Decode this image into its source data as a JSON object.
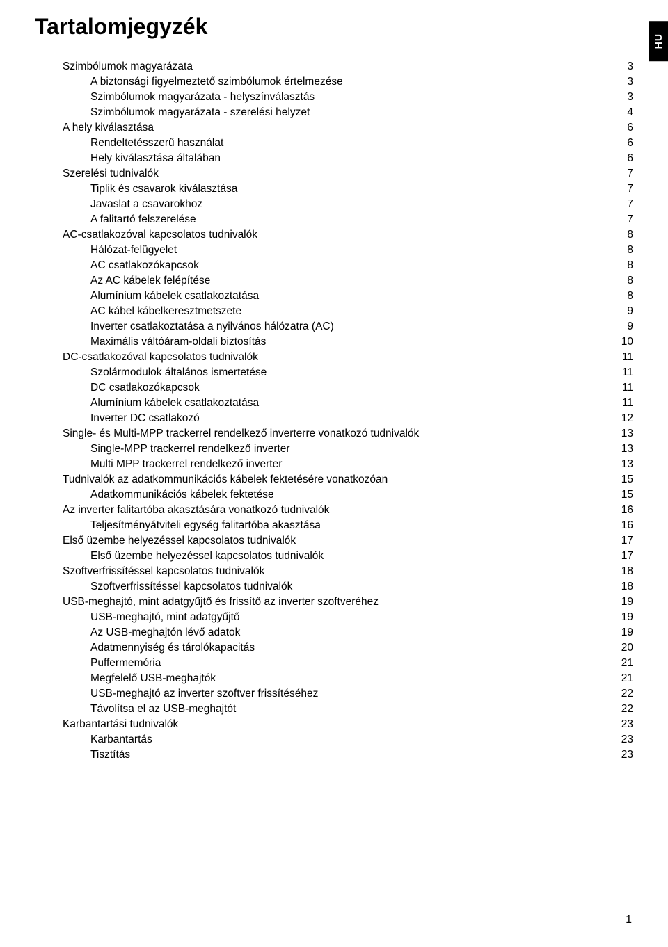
{
  "title": "Tartalomjegyzék",
  "langTab": "HU",
  "pageNumber": "1",
  "entries": [
    {
      "level": 0,
      "text": "Szimbólumok magyarázata",
      "page": "3"
    },
    {
      "level": 1,
      "text": "A biztonsági figyelmeztető szimbólumok értelmezése",
      "page": "3"
    },
    {
      "level": 1,
      "text": "Szimbólumok magyarázata - helyszínválasztás",
      "page": "3"
    },
    {
      "level": 1,
      "text": "Szimbólumok magyarázata - szerelési helyzet",
      "page": "4"
    },
    {
      "level": 0,
      "text": "A hely kiválasztása",
      "page": "6"
    },
    {
      "level": 1,
      "text": "Rendeltetésszerű használat",
      "page": "6"
    },
    {
      "level": 1,
      "text": "Hely kiválasztása általában",
      "page": "6"
    },
    {
      "level": 0,
      "text": "Szerelési tudnivalók",
      "page": "7"
    },
    {
      "level": 1,
      "text": "Tiplik és csavarok kiválasztása",
      "page": "7"
    },
    {
      "level": 1,
      "text": "Javaslat a csavarokhoz",
      "page": "7"
    },
    {
      "level": 1,
      "text": "A falitartó felszerelése",
      "page": "7"
    },
    {
      "level": 0,
      "text": "AC-csatlakozóval kapcsolatos tudnivalók",
      "page": "8"
    },
    {
      "level": 1,
      "text": "Hálózat-felügyelet",
      "page": "8"
    },
    {
      "level": 1,
      "text": "AC csatlakozókapcsok",
      "page": "8"
    },
    {
      "level": 1,
      "text": "Az AC kábelek felépítése",
      "page": "8"
    },
    {
      "level": 1,
      "text": "Alumínium kábelek csatlakoztatása",
      "page": "8"
    },
    {
      "level": 1,
      "text": "AC kábel kábelkeresztmetszete",
      "page": "9"
    },
    {
      "level": 1,
      "text": "Inverter csatlakoztatása a nyilvános hálózatra (AC)",
      "page": "9"
    },
    {
      "level": 1,
      "text": "Maximális váltóáram-oldali biztosítás",
      "page": "10"
    },
    {
      "level": 0,
      "text": "DC-csatlakozóval kapcsolatos tudnivalók",
      "page": "11"
    },
    {
      "level": 1,
      "text": "Szolármodulok általános ismertetése",
      "page": "11"
    },
    {
      "level": 1,
      "text": "DC csatlakozókapcsok",
      "page": "11"
    },
    {
      "level": 1,
      "text": "Alumínium kábelek csatlakoztatása",
      "page": "11"
    },
    {
      "level": 1,
      "text": "Inverter DC csatlakozó",
      "page": "12"
    },
    {
      "level": 0,
      "text": "Single- és Multi-MPP trackerrel rendelkező inverterre vonatkozó tudnivalók",
      "page": "13"
    },
    {
      "level": 1,
      "text": "Single-MPP trackerrel rendelkező inverter",
      "page": "13"
    },
    {
      "level": 1,
      "text": "Multi MPP trackerrel rendelkező inverter",
      "page": "13"
    },
    {
      "level": 0,
      "text": "Tudnivalók az adatkommunikációs kábelek fektetésére vonatkozóan",
      "page": "15"
    },
    {
      "level": 1,
      "text": "Adatkommunikációs kábelek fektetése",
      "page": "15"
    },
    {
      "level": 0,
      "text": "Az inverter falitartóba akasztására vonatkozó tudnivalók",
      "page": "16"
    },
    {
      "level": 1,
      "text": "Teljesítményátviteli egység falitartóba akasztása",
      "page": "16"
    },
    {
      "level": 0,
      "text": "Első üzembe helyezéssel kapcsolatos tudnivalók",
      "page": "17"
    },
    {
      "level": 1,
      "text": "Első üzembe helyezéssel kapcsolatos tudnivalók",
      "page": "17"
    },
    {
      "level": 0,
      "text": "Szoftverfrissítéssel kapcsolatos tudnivalók",
      "page": "18"
    },
    {
      "level": 1,
      "text": "Szoftverfrissítéssel kapcsolatos tudnivalók",
      "page": "18"
    },
    {
      "level": 0,
      "text": "USB-meghajtó, mint adatgyűjtő és frissítő az inverter szoftveréhez",
      "page": "19"
    },
    {
      "level": 1,
      "text": "USB-meghajtó, mint adatgyűjtő",
      "page": "19"
    },
    {
      "level": 1,
      "text": "Az USB-meghajtón lévő adatok",
      "page": "19"
    },
    {
      "level": 1,
      "text": "Adatmennyiség és tárolókapacitás",
      "page": "20"
    },
    {
      "level": 1,
      "text": "Puffermemória",
      "page": "21"
    },
    {
      "level": 1,
      "text": "Megfelelő USB-meghajtók",
      "page": "21"
    },
    {
      "level": 1,
      "text": "USB-meghajtó az inverter szoftver frissítéséhez",
      "page": "22"
    },
    {
      "level": 1,
      "text": "Távolítsa el az USB-meghajtót",
      "page": "22"
    },
    {
      "level": 0,
      "text": "Karbantartási tudnivalók",
      "page": "23"
    },
    {
      "level": 1,
      "text": "Karbantartás",
      "page": "23"
    },
    {
      "level": 1,
      "text": "Tisztítás",
      "page": "23"
    }
  ]
}
